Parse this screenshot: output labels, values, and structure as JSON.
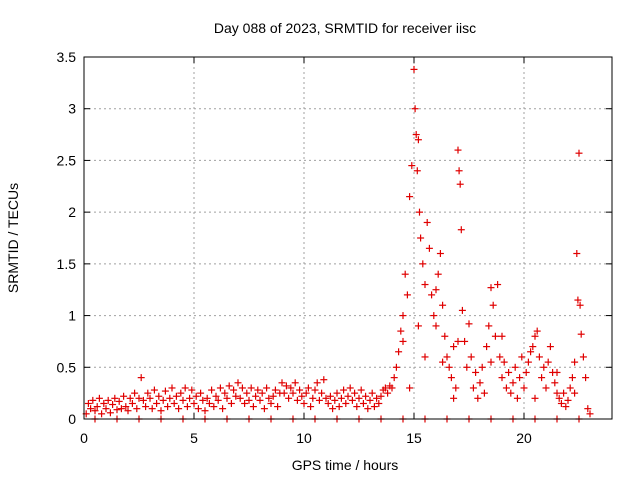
{
  "chart_data": {
    "type": "scatter",
    "title": "Day 088 of 2023, SRMTID for receiver iisc",
    "xlabel": "GPS time / hours",
    "ylabel": "SRMTID / TECUs",
    "xlim": [
      0,
      24
    ],
    "ylim": [
      0,
      3.5
    ],
    "grid": true,
    "marker": "+",
    "color": "#e00000",
    "x_ticks": [
      0,
      5,
      10,
      15,
      20
    ],
    "x_tick_labels": [
      "0",
      "5",
      "10",
      "15",
      "20"
    ],
    "y_ticks": [
      0,
      0.5,
      1,
      1.5,
      2,
      2.5,
      3,
      3.5
    ],
    "y_tick_labels": [
      "0",
      "0.5",
      "1",
      "1.5",
      "2",
      "2.5",
      "3",
      "3.5"
    ],
    "series": [
      {
        "name": "SRMTID",
        "points": [
          [
            0.1,
            0.05
          ],
          [
            0.2,
            0.15
          ],
          [
            0.3,
            0.1
          ],
          [
            0.4,
            0.18
          ],
          [
            0.5,
            0.08
          ],
          [
            0.6,
            0.12
          ],
          [
            0.7,
            0.2
          ],
          [
            0.8,
            0.05
          ],
          [
            0.9,
            0.15
          ],
          [
            1.0,
            0.1
          ],
          [
            1.1,
            0.18
          ],
          [
            1.2,
            0.06
          ],
          [
            1.3,
            0.14
          ],
          [
            1.4,
            0.2
          ],
          [
            1.5,
            0.09
          ],
          [
            1.6,
            0.17
          ],
          [
            1.7,
            0.1
          ],
          [
            1.8,
            0.22
          ],
          [
            1.9,
            0.12
          ],
          [
            2.0,
            0.08
          ],
          [
            2.1,
            0.2
          ],
          [
            2.2,
            0.15
          ],
          [
            2.3,
            0.25
          ],
          [
            2.4,
            0.1
          ],
          [
            2.5,
            0.2
          ],
          [
            2.6,
            0.4
          ],
          [
            2.7,
            0.18
          ],
          [
            2.8,
            0.12
          ],
          [
            2.9,
            0.25
          ],
          [
            3.0,
            0.2
          ],
          [
            3.1,
            0.1
          ],
          [
            3.2,
            0.28
          ],
          [
            3.3,
            0.15
          ],
          [
            3.4,
            0.22
          ],
          [
            3.5,
            0.08
          ],
          [
            3.6,
            0.18
          ],
          [
            3.7,
            0.27
          ],
          [
            3.8,
            0.12
          ],
          [
            3.9,
            0.2
          ],
          [
            4.0,
            0.3
          ],
          [
            4.1,
            0.15
          ],
          [
            4.2,
            0.22
          ],
          [
            4.3,
            0.1
          ],
          [
            4.4,
            0.25
          ],
          [
            4.5,
            0.18
          ],
          [
            4.6,
            0.3
          ],
          [
            4.7,
            0.12
          ],
          [
            4.8,
            0.2
          ],
          [
            4.9,
            0.28
          ],
          [
            5.0,
            0.15
          ],
          [
            5.1,
            0.22
          ],
          [
            5.2,
            0.1
          ],
          [
            5.3,
            0.25
          ],
          [
            5.4,
            0.18
          ],
          [
            5.5,
            0.08
          ],
          [
            5.6,
            0.2
          ],
          [
            5.7,
            0.15
          ],
          [
            5.8,
            0.28
          ],
          [
            5.9,
            0.12
          ],
          [
            6.0,
            0.22
          ],
          [
            6.1,
            0.18
          ],
          [
            6.2,
            0.3
          ],
          [
            6.3,
            0.1
          ],
          [
            6.4,
            0.25
          ],
          [
            6.5,
            0.2
          ],
          [
            6.6,
            0.32
          ],
          [
            6.7,
            0.15
          ],
          [
            6.8,
            0.28
          ],
          [
            6.9,
            0.22
          ],
          [
            7.0,
            0.35
          ],
          [
            7.1,
            0.2
          ],
          [
            7.2,
            0.3
          ],
          [
            7.3,
            0.15
          ],
          [
            7.4,
            0.25
          ],
          [
            7.5,
            0.18
          ],
          [
            7.6,
            0.3
          ],
          [
            7.7,
            0.12
          ],
          [
            7.8,
            0.22
          ],
          [
            7.9,
            0.28
          ],
          [
            8.0,
            0.18
          ],
          [
            8.1,
            0.25
          ],
          [
            8.2,
            0.1
          ],
          [
            8.3,
            0.3
          ],
          [
            8.4,
            0.2
          ],
          [
            8.5,
            0.15
          ],
          [
            8.6,
            0.22
          ],
          [
            8.7,
            0.28
          ],
          [
            8.8,
            0.12
          ],
          [
            8.9,
            0.25
          ],
          [
            9.0,
            0.35
          ],
          [
            9.1,
            0.25
          ],
          [
            9.2,
            0.32
          ],
          [
            9.3,
            0.2
          ],
          [
            9.4,
            0.3
          ],
          [
            9.5,
            0.25
          ],
          [
            9.6,
            0.35
          ],
          [
            9.7,
            0.18
          ],
          [
            9.8,
            0.28
          ],
          [
            9.9,
            0.22
          ],
          [
            10.0,
            0.15
          ],
          [
            10.1,
            0.25
          ],
          [
            10.2,
            0.3
          ],
          [
            10.3,
            0.12
          ],
          [
            10.4,
            0.2
          ],
          [
            10.5,
            0.28
          ],
          [
            10.6,
            0.35
          ],
          [
            10.7,
            0.18
          ],
          [
            10.8,
            0.25
          ],
          [
            10.9,
            0.38
          ],
          [
            11.0,
            0.2
          ],
          [
            11.1,
            0.15
          ],
          [
            11.2,
            0.22
          ],
          [
            11.3,
            0.1
          ],
          [
            11.4,
            0.18
          ],
          [
            11.5,
            0.25
          ],
          [
            11.6,
            0.12
          ],
          [
            11.7,
            0.2
          ],
          [
            11.8,
            0.28
          ],
          [
            11.9,
            0.15
          ],
          [
            12.0,
            0.22
          ],
          [
            12.1,
            0.3
          ],
          [
            12.2,
            0.18
          ],
          [
            12.3,
            0.25
          ],
          [
            12.4,
            0.12
          ],
          [
            12.5,
            0.2
          ],
          [
            12.6,
            0.28
          ],
          [
            12.7,
            0.15
          ],
          [
            12.8,
            0.22
          ],
          [
            12.9,
            0.1
          ],
          [
            13.0,
            0.18
          ],
          [
            13.1,
            0.25
          ],
          [
            13.2,
            0.12
          ],
          [
            13.3,
            0.2
          ],
          [
            13.4,
            0.15
          ],
          [
            13.5,
            0.22
          ],
          [
            13.6,
            0.28
          ],
          [
            13.7,
            0.3
          ],
          [
            13.8,
            0.25
          ],
          [
            13.9,
            0.32
          ],
          [
            14.0,
            0.3
          ],
          [
            14.1,
            0.4
          ],
          [
            14.2,
            0.5
          ],
          [
            14.3,
            0.65
          ],
          [
            14.4,
            0.85
          ],
          [
            14.5,
            1.0
          ],
          [
            14.6,
            1.4
          ],
          [
            14.7,
            1.2
          ],
          [
            14.8,
            2.15
          ],
          [
            14.9,
            2.45
          ],
          [
            15.0,
            3.38
          ],
          [
            15.05,
            3.0
          ],
          [
            15.1,
            2.75
          ],
          [
            15.15,
            2.4
          ],
          [
            15.2,
            2.7
          ],
          [
            15.25,
            2.0
          ],
          [
            15.3,
            1.75
          ],
          [
            15.4,
            1.5
          ],
          [
            15.5,
            1.3
          ],
          [
            15.6,
            1.9
          ],
          [
            15.7,
            1.65
          ],
          [
            15.8,
            1.2
          ],
          [
            15.9,
            1.0
          ],
          [
            16.0,
            0.9
          ],
          [
            16.1,
            1.4
          ],
          [
            16.2,
            1.6
          ],
          [
            16.3,
            1.1
          ],
          [
            16.4,
            0.8
          ],
          [
            16.5,
            0.6
          ],
          [
            16.6,
            0.5
          ],
          [
            16.7,
            0.4
          ],
          [
            16.8,
            0.7
          ],
          [
            16.9,
            0.3
          ],
          [
            17.0,
            2.6
          ],
          [
            17.05,
            2.4
          ],
          [
            17.1,
            2.27
          ],
          [
            17.15,
            1.83
          ],
          [
            17.2,
            1.05
          ],
          [
            17.3,
            0.75
          ],
          [
            17.4,
            0.5
          ],
          [
            17.5,
            0.92
          ],
          [
            17.6,
            0.6
          ],
          [
            17.7,
            0.3
          ],
          [
            17.8,
            0.45
          ],
          [
            17.9,
            0.2
          ],
          [
            18.0,
            0.35
          ],
          [
            18.1,
            0.5
          ],
          [
            18.2,
            0.25
          ],
          [
            18.3,
            0.7
          ],
          [
            18.4,
            0.9
          ],
          [
            18.5,
            1.27
          ],
          [
            18.6,
            1.1
          ],
          [
            18.7,
            0.8
          ],
          [
            18.8,
            1.3
          ],
          [
            18.9,
            0.6
          ],
          [
            19.0,
            0.4
          ],
          [
            19.1,
            0.55
          ],
          [
            19.2,
            0.3
          ],
          [
            19.3,
            0.45
          ],
          [
            19.4,
            0.25
          ],
          [
            19.5,
            0.35
          ],
          [
            19.6,
            0.5
          ],
          [
            19.7,
            0.2
          ],
          [
            19.8,
            0.4
          ],
          [
            19.9,
            0.6
          ],
          [
            20.0,
            0.3
          ],
          [
            20.1,
            0.45
          ],
          [
            20.2,
            0.55
          ],
          [
            20.3,
            0.65
          ],
          [
            20.4,
            0.7
          ],
          [
            20.5,
            0.8
          ],
          [
            20.6,
            0.85
          ],
          [
            20.7,
            0.6
          ],
          [
            20.8,
            0.4
          ],
          [
            20.9,
            0.5
          ],
          [
            21.0,
            0.3
          ],
          [
            21.1,
            0.55
          ],
          [
            21.2,
            0.7
          ],
          [
            21.3,
            0.45
          ],
          [
            21.4,
            0.35
          ],
          [
            21.5,
            0.25
          ],
          [
            21.6,
            0.2
          ],
          [
            21.7,
            0.15
          ],
          [
            21.8,
            0.25
          ],
          [
            21.9,
            0.12
          ],
          [
            22.0,
            0.18
          ],
          [
            22.1,
            0.3
          ],
          [
            22.2,
            0.4
          ],
          [
            22.3,
            0.55
          ],
          [
            22.4,
            1.6
          ],
          [
            22.45,
            1.15
          ],
          [
            22.5,
            2.57
          ],
          [
            22.55,
            1.1
          ],
          [
            22.6,
            0.82
          ],
          [
            22.7,
            0.6
          ],
          [
            22.8,
            0.4
          ],
          [
            22.9,
            0.1
          ],
          [
            23.0,
            0.05
          ],
          [
            14.5,
            0.75
          ],
          [
            15.2,
            0.9
          ],
          [
            15.5,
            0.6
          ],
          [
            16.0,
            1.25
          ],
          [
            16.3,
            0.55
          ],
          [
            17.0,
            0.75
          ],
          [
            18.5,
            0.55
          ],
          [
            20.5,
            0.2
          ],
          [
            21.5,
            0.45
          ],
          [
            22.3,
            0.25
          ],
          [
            14.8,
            0.3
          ],
          [
            16.8,
            0.2
          ],
          [
            19.0,
            0.8
          ]
        ],
        "zero_points_x": [
          0.5,
          1.5,
          2.5,
          3.5,
          4.5,
          5.5,
          6.5,
          7.5,
          8.5,
          9.5,
          10.5,
          11.5,
          12.5,
          13.5,
          14.5,
          15.5,
          16.5,
          17.5,
          18.5,
          19.5,
          20.5,
          21.5,
          22.5
        ]
      }
    ]
  }
}
